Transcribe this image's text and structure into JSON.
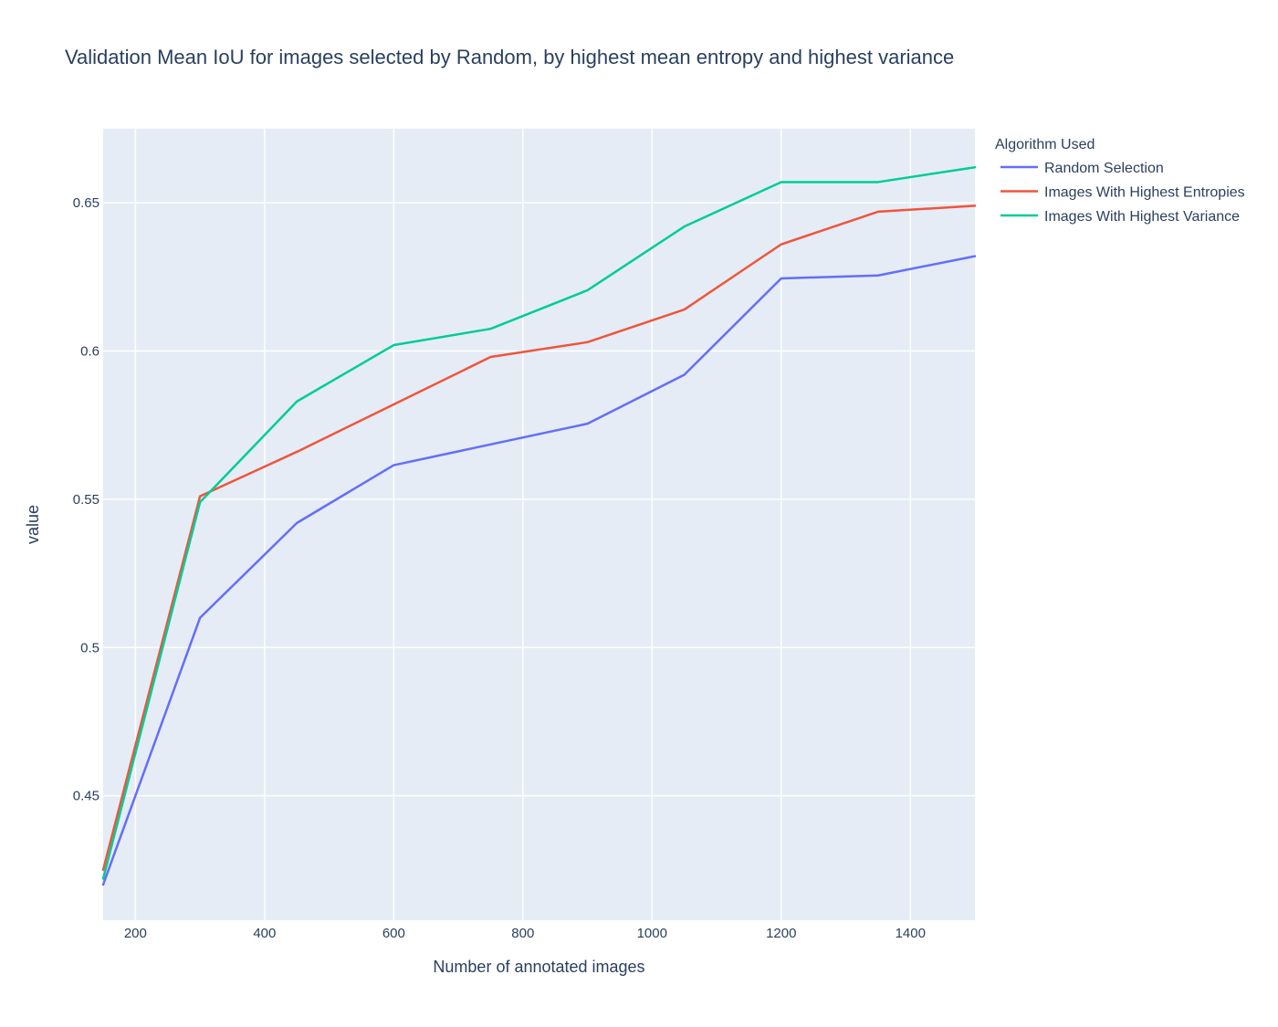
{
  "chart_data": {
    "type": "line",
    "title": "Validation Mean IoU for images selected by Random, by highest mean entropy and highest variance",
    "xlabel": "Number of annotated images",
    "ylabel": "value",
    "xlim": [
      150,
      1500
    ],
    "ylim": [
      0.408,
      0.675
    ],
    "x_ticks": [
      200,
      400,
      600,
      800,
      1000,
      1200,
      1400
    ],
    "y_ticks": [
      0.45,
      0.5,
      0.55,
      0.6,
      0.65
    ],
    "y_tick_labels": [
      "0.45",
      "0.5",
      "0.55",
      "0.6",
      "0.65"
    ],
    "grid": true,
    "legend": {
      "title": "Algorithm Used",
      "position": "top-right"
    },
    "x": [
      150,
      300,
      450,
      600,
      750,
      900,
      1050,
      1200,
      1350,
      1500
    ],
    "series": [
      {
        "name": "Random Selection",
        "color": "#636efa",
        "values": [
          0.42,
          0.51,
          0.542,
          0.5615,
          0.5685,
          0.5755,
          0.592,
          0.6245,
          0.6255,
          0.632
        ]
      },
      {
        "name": "Images With Highest Entropies",
        "color": "#ef553b",
        "values": [
          0.425,
          0.551,
          0.566,
          0.582,
          0.598,
          0.603,
          0.614,
          0.636,
          0.647,
          0.649
        ]
      },
      {
        "name": "Images With Highest Variance",
        "color": "#00cc96",
        "values": [
          0.422,
          0.549,
          0.583,
          0.602,
          0.6075,
          0.6205,
          0.642,
          0.657,
          0.657,
          0.662
        ]
      }
    ],
    "plot_background": "#e5ecf6",
    "grid_color": "#ffffff",
    "text_color": "#2a3f5f"
  }
}
